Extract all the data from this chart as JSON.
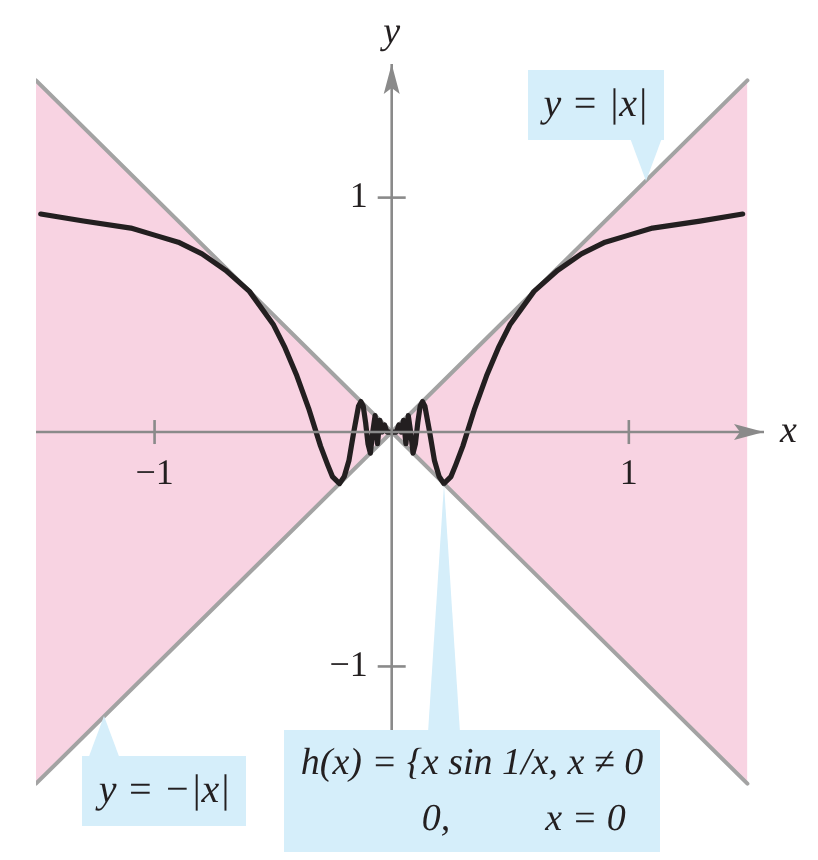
{
  "chart_data": {
    "type": "line",
    "xlabel": "x",
    "ylabel": "y",
    "xlim": [
      -1.5,
      1.57
    ],
    "ylim": [
      -1.51,
      1.57
    ],
    "xticks": [
      {
        "value": -1,
        "label": "−1"
      },
      1
    ],
    "yticks": [
      {
        "value": -1,
        "label": "−1"
      },
      1
    ],
    "legend": false,
    "marker": "none",
    "series": [
      {
        "type": "line",
        "color": "#a3a3a3",
        "x": [
          -1.5,
          0,
          1.5
        ],
        "values": [
          1.5,
          0,
          1.5
        ],
        "lower": [
          -1.5,
          0,
          -1.5
        ],
        "upper": [
          1.5,
          0,
          1.5
        ]
      },
      {
        "type": "line",
        "color": "#a3a3a3",
        "x": [
          -1.5,
          0,
          1.5
        ],
        "values": [
          -1.5,
          0,
          -1.5
        ]
      },
      {
        "color": "#231f20",
        "x": [
          -1.48,
          -1.3,
          -1.1,
          -1.0,
          -0.9,
          -0.8,
          -0.7,
          -0.6,
          -0.5,
          -0.45,
          -0.4,
          -0.35,
          -0.3,
          -0.27,
          -0.25,
          -0.22,
          -0.2,
          -0.18,
          -0.16,
          -0.14,
          -0.13,
          -0.12,
          -0.11,
          -0.1,
          -0.09,
          -0.08,
          -0.07,
          -0.06,
          -0.05,
          -0.04,
          -0.03,
          -0.02,
          -0.01,
          0,
          0.01,
          0.02,
          0.03,
          0.04,
          0.05,
          0.06,
          0.07,
          0.08,
          0.09,
          0.1,
          0.11,
          0.12,
          0.13,
          0.14,
          0.16,
          0.18,
          0.2,
          0.22,
          0.25,
          0.27,
          0.3,
          0.35,
          0.4,
          0.45,
          0.5,
          0.6,
          0.7,
          0.8,
          0.9,
          1.0,
          1.1,
          1.3,
          1.48
        ],
        "values": [
          0.93,
          0.9,
          0.87,
          0.84,
          0.81,
          0.76,
          0.69,
          0.6,
          0.46,
          0.36,
          0.24,
          0.1,
          -0.06,
          -0.14,
          -0.19,
          -0.22,
          -0.19,
          -0.12,
          0,
          0.11,
          0.13,
          0.11,
          0.04,
          -0.05,
          -0.09,
          0,
          0.07,
          -0.05,
          0.05,
          0,
          0.03,
          0,
          0,
          0,
          0,
          0,
          0.03,
          0,
          0.05,
          -0.05,
          0.07,
          0,
          -0.09,
          -0.05,
          0.04,
          0.11,
          0.13,
          0.11,
          0,
          -0.12,
          -0.19,
          -0.22,
          -0.19,
          -0.14,
          -0.06,
          0.1,
          0.24,
          0.36,
          0.46,
          0.6,
          0.69,
          0.76,
          0.81,
          0.84,
          0.87,
          0.9,
          0.93
        ]
      }
    ],
    "annotations": [
      {
        "text": "y = |x|",
        "x": 1.07,
        "y": 1.07
      },
      {
        "text": "y = −|x|",
        "x": -1.21,
        "y": -1.21
      },
      {
        "text": "h(x) = {x sin 1/x, x ≠ 0\n0,          x = 0",
        "x": 0.22,
        "y": -0.22
      }
    ]
  }
}
